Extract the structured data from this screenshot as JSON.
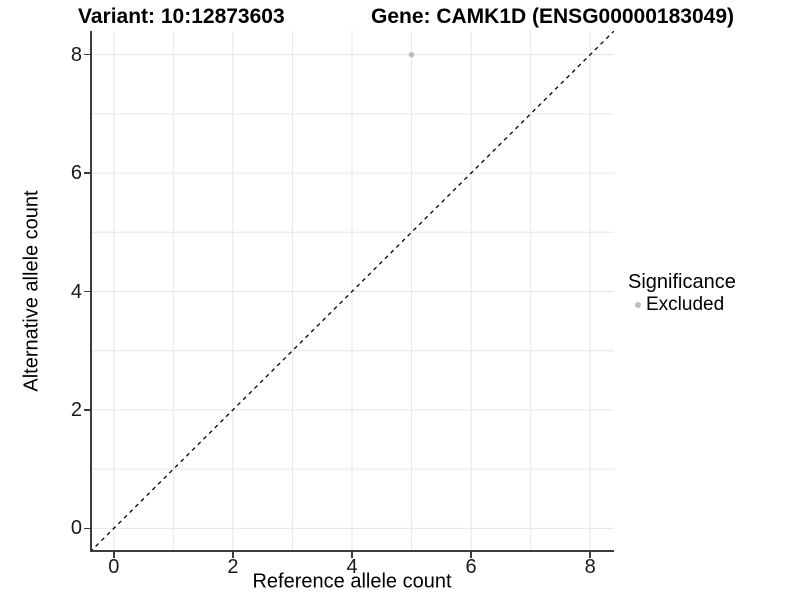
{
  "chart_data": {
    "type": "scatter",
    "title_left": "Variant: 10:12873603",
    "title_right": "Gene: CAMK1D (ENSG00000183049)",
    "xlabel": "Reference allele count",
    "ylabel": "Alternative allele count",
    "xlim": [
      -0.4,
      8.4
    ],
    "ylim": [
      -0.4,
      8.4
    ],
    "x_tick_values": [
      0,
      2,
      4,
      6,
      8
    ],
    "y_tick_values": [
      0,
      2,
      4,
      6,
      8
    ],
    "grid_lines_x": [
      0,
      1,
      2,
      3,
      4,
      5,
      6,
      7,
      8
    ],
    "grid_lines_y": [
      0,
      1,
      2,
      3,
      4,
      5,
      6,
      7,
      8
    ],
    "grid": "on",
    "identity_line": {
      "style": "dashed",
      "from": [
        -0.4,
        -0.4
      ],
      "to": [
        8.4,
        8.4
      ],
      "color": "#000000"
    },
    "series": [
      {
        "name": "Excluded",
        "color": "#bebebe",
        "points": [
          {
            "x": 5,
            "y": 8
          }
        ]
      }
    ],
    "legend": {
      "position": "right",
      "title": "Significance",
      "entries": [
        {
          "label": "Excluded",
          "color": "#bebebe"
        }
      ]
    }
  },
  "colors": {
    "background": "#ffffff",
    "gridline": "#e6e6e6",
    "axis_line": "#3c3c3c",
    "text": "#000000",
    "point": "#bebebe"
  }
}
